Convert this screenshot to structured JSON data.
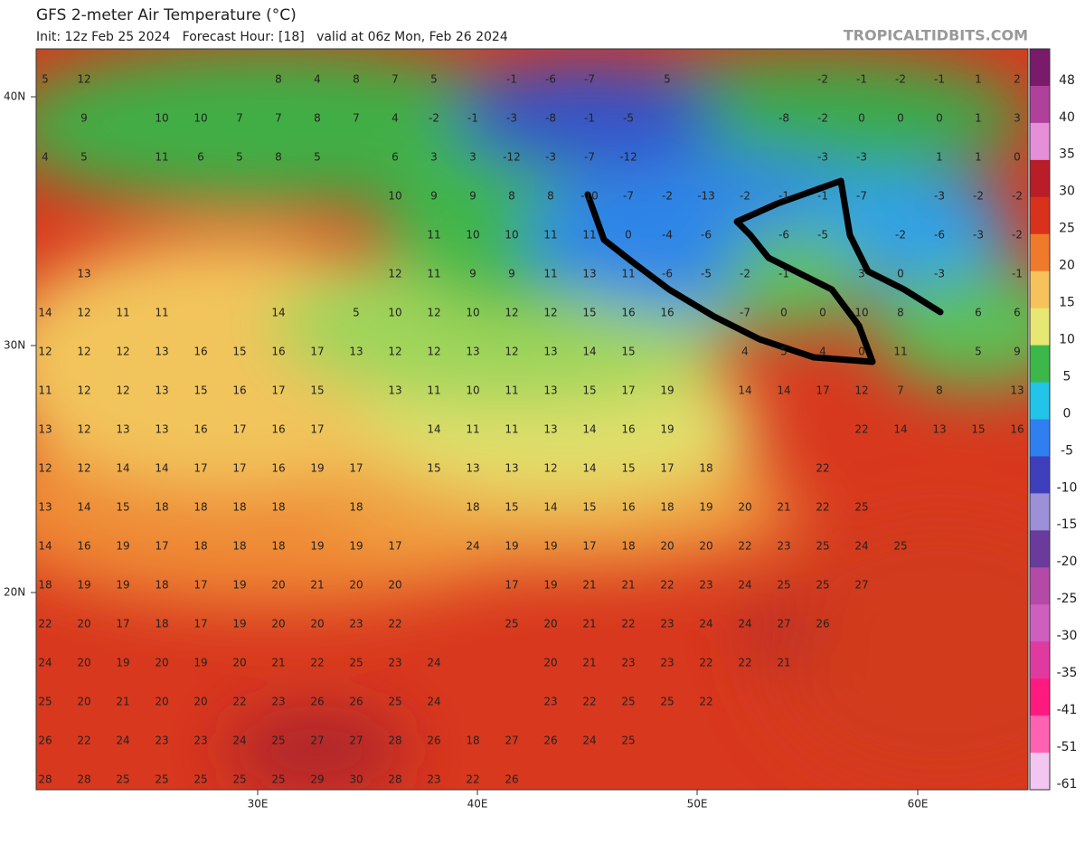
{
  "header": {
    "title": "GFS 2-meter Air Temperature (°C)",
    "subtitle": "Init: 12z Feb 25 2024   Forecast Hour: [18]   valid at 06z Mon, Feb 26 2024",
    "source": "TROPICALTIDBITS.COM"
  },
  "axes": {
    "lat_labels": [
      "40N",
      "30N",
      "20N"
    ],
    "lon_labels": [
      "30E",
      "40E",
      "50E",
      "60E"
    ]
  },
  "colorbar": {
    "levels": [
      48,
      40,
      35,
      30,
      25,
      20,
      15,
      10,
      5,
      0,
      -5,
      -10,
      -15,
      -20,
      -25,
      -30,
      -35,
      -41,
      -51,
      -61
    ],
    "colors": [
      "#7a1a6a",
      "#b0419b",
      "#e58fd8",
      "#b81d28",
      "#d8321c",
      "#ef7a2c",
      "#f5c25c",
      "#e6e873",
      "#3cb84a",
      "#22c4e8",
      "#2f7ff0",
      "#3f3fbd",
      "#9c90d6",
      "#6b3b9b",
      "#b44aa6",
      "#cf5fbf",
      "#e03aa0",
      "#ff1a80",
      "#ff62b2",
      "#f2c6f0"
    ]
  },
  "grid_labels": [
    [
      5,
      12,
      null,
      null,
      null,
      null,
      8,
      4,
      8,
      7,
      5,
      null,
      -1,
      -6,
      -7,
      null,
      5,
      null,
      null,
      null,
      -2,
      -1,
      -2,
      -1,
      1,
      2
    ],
    [
      null,
      9,
      null,
      10,
      10,
      7,
      7,
      8,
      7,
      4,
      -2,
      -1,
      -3,
      -8,
      -1,
      -5,
      null,
      null,
      null,
      -8,
      -2,
      0,
      0,
      0,
      1,
      3
    ],
    [
      4,
      5,
      null,
      11,
      6,
      5,
      8,
      5,
      null,
      6,
      3,
      3,
      -12,
      -3,
      -7,
      -12,
      null,
      null,
      null,
      null,
      -3,
      -3,
      null,
      1,
      1,
      0
    ],
    [
      null,
      null,
      null,
      null,
      null,
      null,
      null,
      null,
      null,
      10,
      9,
      9,
      8,
      8,
      -10,
      -7,
      -2,
      -13,
      -2,
      -1,
      -1,
      -7,
      null,
      -3,
      -2,
      -2
    ],
    [
      null,
      null,
      null,
      null,
      null,
      null,
      null,
      null,
      null,
      null,
      11,
      10,
      10,
      11,
      11,
      0,
      -4,
      -6,
      null,
      -6,
      -5,
      null,
      -2,
      -6,
      -3,
      -2
    ],
    [
      null,
      13,
      null,
      null,
      null,
      null,
      null,
      null,
      null,
      12,
      11,
      9,
      9,
      11,
      13,
      11,
      -6,
      -5,
      -2,
      -1,
      null,
      3,
      0,
      -3,
      null,
      -1
    ],
    [
      14,
      12,
      11,
      11,
      null,
      null,
      14,
      null,
      5,
      10,
      12,
      10,
      12,
      12,
      15,
      16,
      16,
      null,
      -7,
      0,
      0,
      10,
      8,
      null,
      6,
      6
    ],
    [
      12,
      12,
      12,
      13,
      16,
      15,
      16,
      17,
      13,
      12,
      12,
      13,
      12,
      13,
      14,
      15,
      null,
      null,
      4,
      5,
      4,
      0,
      11,
      null,
      5,
      9
    ],
    [
      11,
      12,
      12,
      13,
      15,
      16,
      17,
      15,
      null,
      13,
      11,
      10,
      11,
      13,
      15,
      17,
      19,
      null,
      14,
      14,
      17,
      12,
      7,
      8,
      null,
      13
    ],
    [
      13,
      12,
      13,
      13,
      16,
      17,
      16,
      17,
      null,
      null,
      14,
      11,
      11,
      13,
      14,
      16,
      19,
      null,
      null,
      null,
      null,
      22,
      14,
      13,
      15,
      16
    ],
    [
      12,
      12,
      14,
      14,
      17,
      17,
      16,
      19,
      17,
      null,
      15,
      13,
      13,
      12,
      14,
      15,
      17,
      18,
      null,
      null,
      22,
      null,
      null,
      null,
      null,
      null
    ],
    [
      13,
      14,
      15,
      18,
      18,
      18,
      18,
      null,
      18,
      null,
      null,
      18,
      15,
      14,
      15,
      16,
      18,
      19,
      20,
      21,
      22,
      25,
      null,
      null,
      null,
      null
    ],
    [
      14,
      16,
      19,
      17,
      18,
      18,
      18,
      19,
      19,
      17,
      null,
      24,
      19,
      19,
      17,
      18,
      20,
      20,
      22,
      23,
      25,
      24,
      25,
      null,
      null,
      null
    ],
    [
      18,
      19,
      19,
      18,
      17,
      19,
      20,
      21,
      20,
      20,
      null,
      null,
      17,
      19,
      21,
      21,
      22,
      23,
      24,
      25,
      25,
      27,
      null,
      null,
      null,
      null
    ],
    [
      22,
      20,
      17,
      18,
      17,
      19,
      20,
      20,
      23,
      22,
      null,
      null,
      25,
      20,
      21,
      22,
      23,
      24,
      24,
      27,
      26,
      null,
      null,
      null,
      null,
      null
    ],
    [
      24,
      20,
      19,
      20,
      19,
      20,
      21,
      22,
      25,
      23,
      24,
      null,
      null,
      20,
      21,
      23,
      23,
      22,
      22,
      21,
      null,
      null,
      null,
      null,
      null,
      null
    ],
    [
      25,
      20,
      21,
      20,
      20,
      22,
      23,
      26,
      26,
      25,
      24,
      null,
      null,
      23,
      22,
      25,
      25,
      22,
      null,
      null,
      null,
      null,
      null,
      null,
      null,
      null
    ],
    [
      26,
      22,
      24,
      23,
      23,
      24,
      25,
      27,
      27,
      28,
      26,
      18,
      27,
      26,
      24,
      25,
      null,
      null,
      null,
      null,
      null,
      null,
      null,
      null,
      null,
      null
    ],
    [
      28,
      28,
      25,
      25,
      25,
      25,
      25,
      29,
      30,
      28,
      23,
      22,
      26,
      null,
      null,
      null,
      null,
      null,
      null,
      null,
      null,
      null,
      null,
      null,
      null,
      null
    ]
  ]
}
